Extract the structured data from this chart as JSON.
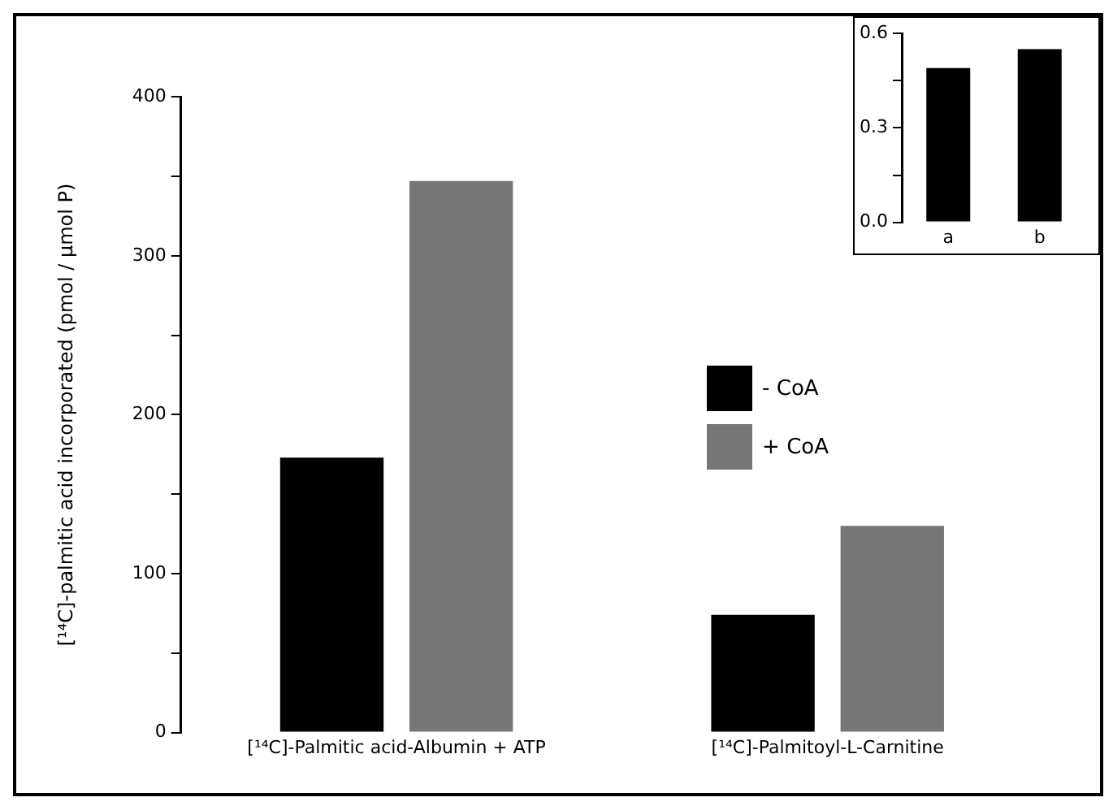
{
  "chart_data": [
    {
      "type": "bar",
      "categories": [
        "[¹⁴C]-Palmitic acid-Albumin + ATP",
        "[¹⁴C]-Palmitoyl-L-Carnitine"
      ],
      "ylabel": "[¹⁴C]-palmitic acid incorporated (pmol / µmol P)",
      "series": [
        {
          "name": "- CoA",
          "color": "#000000",
          "values": [
            173,
            74
          ]
        },
        {
          "name": "+ CoA",
          "color": "#777777",
          "values": [
            347,
            130
          ]
        }
      ],
      "ylim": [
        0,
        400
      ],
      "yticks": [
        0,
        {
          "value": 50,
          "label": null
        },
        100,
        {
          "value": 150,
          "label": null
        },
        200,
        {
          "value": 250,
          "label": null
        },
        300,
        {
          "value": 350,
          "label": null
        },
        400
      ],
      "grid": false,
      "legend": "right"
    },
    {
      "type": "bar",
      "categories": [
        "a",
        "b"
      ],
      "series": [
        {
          "color": "#000000",
          "values": [
            0.49,
            0.55
          ]
        }
      ],
      "ylim": [
        0,
        0.6
      ],
      "yticks": [
        {
          "value": 0,
          "label": "0.0"
        },
        {
          "value": 0.15,
          "label": null
        },
        0.3,
        {
          "value": 0.45,
          "label": null
        },
        0.6
      ],
      "grid": false,
      "legend": false
    }
  ]
}
